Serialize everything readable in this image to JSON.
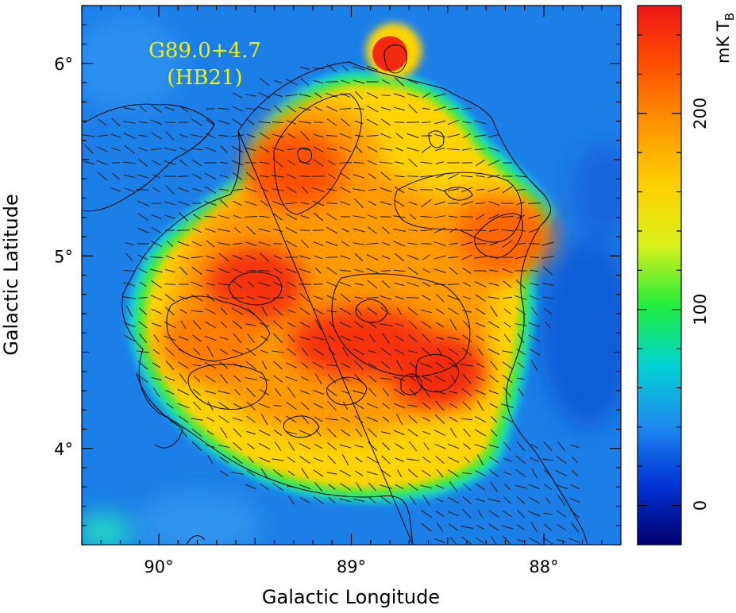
{
  "chart_data": {
    "type": "heatmap",
    "title": "G89.0+4.7",
    "subtitle": "(HB21)",
    "xlabel": "Galactic Longitude",
    "ylabel": "Galactic Latitude",
    "x_ticks": [
      {
        "value": 90,
        "label": "90°"
      },
      {
        "value": 89,
        "label": "89°"
      },
      {
        "value": 88,
        "label": "88°"
      }
    ],
    "y_ticks": [
      {
        "value": 6,
        "label": "6°"
      },
      {
        "value": 5,
        "label": "5°"
      },
      {
        "value": 4,
        "label": "4°"
      }
    ],
    "xlim": [
      90.4,
      87.6
    ],
    "ylim": [
      3.5,
      6.3
    ],
    "colorbar": {
      "label": "mK T",
      "label_subscript": "B",
      "range": [
        -20,
        255
      ],
      "ticks": [
        {
          "value": 0,
          "label": "0"
        },
        {
          "value": 100,
          "label": "100"
        },
        {
          "value": 200,
          "label": "200"
        }
      ],
      "colors": [
        "#00006e",
        "#0033d6",
        "#1f8cf0",
        "#00d2d2",
        "#21ee3c",
        "#d8f018",
        "#ffd000",
        "#ff9600",
        "#ff5000",
        "#ee1616"
      ]
    },
    "features": {
      "background_level": 15,
      "shell_level": 120,
      "peak_level": 240,
      "compact_source": {
        "l": 88.8,
        "b": 6.05,
        "value": 245
      },
      "bright_regions": [
        {
          "l": 89.5,
          "b": 4.85,
          "value": 240
        },
        {
          "l": 89.3,
          "b": 5.45,
          "value": 225
        },
        {
          "l": 88.55,
          "b": 4.4,
          "value": 245
        },
        {
          "l": 88.2,
          "b": 5.1,
          "value": 215
        },
        {
          "l": 89.75,
          "b": 4.55,
          "value": 205
        }
      ]
    }
  }
}
